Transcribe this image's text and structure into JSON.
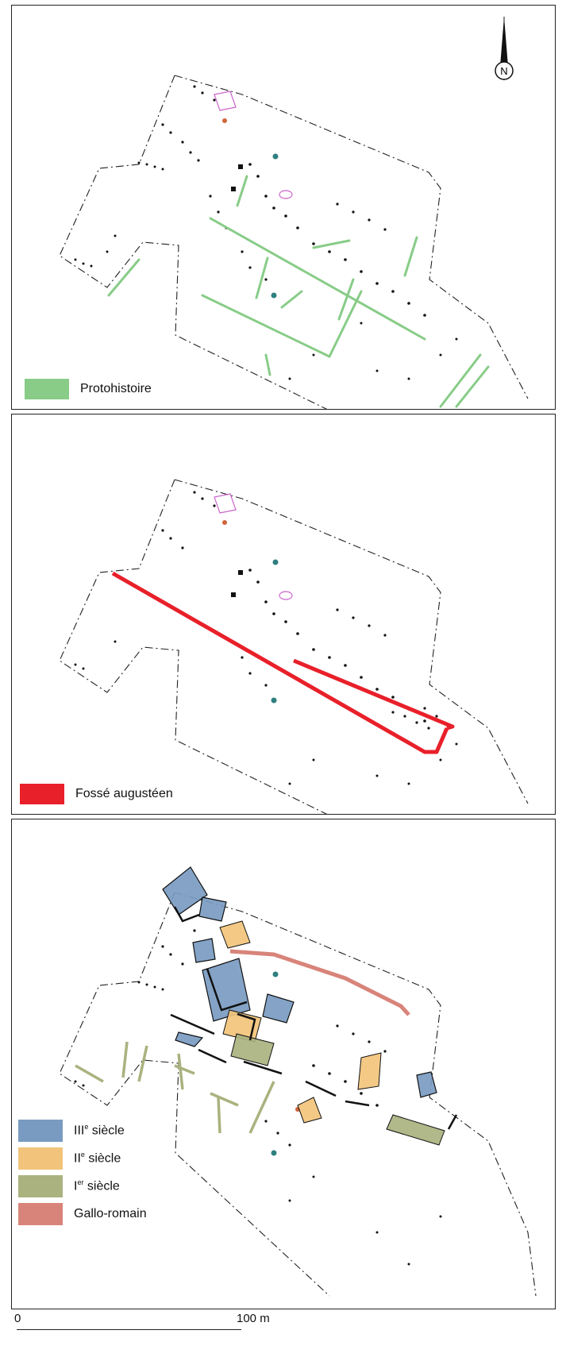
{
  "north_arrow": {
    "label": "N"
  },
  "panels": [
    {
      "legend": [
        {
          "label": "Protohistoire",
          "color": "#88cc88"
        }
      ]
    },
    {
      "legend": [
        {
          "label": "Fossé augustéen",
          "color": "#e8202a"
        }
      ]
    },
    {
      "legend": [
        {
          "label": "III",
          "sup": "e",
          "rest": " siècle",
          "color": "#7a9bc1"
        },
        {
          "label": "II",
          "sup": "e",
          "rest": " siècle",
          "color": "#f2c47b"
        },
        {
          "label": "I",
          "sup": "er",
          "rest": " siècle",
          "color": "#aab27f"
        },
        {
          "label": "Gallo-romain",
          "sup": "",
          "rest": "",
          "color": "#d8847a"
        }
      ]
    }
  ],
  "scale": {
    "start": "0",
    "end": "100 m"
  },
  "colors": {
    "outline": "#222222",
    "pink": "#cc66cc",
    "orange": "#d0643a",
    "teal": "#2f7f80"
  }
}
